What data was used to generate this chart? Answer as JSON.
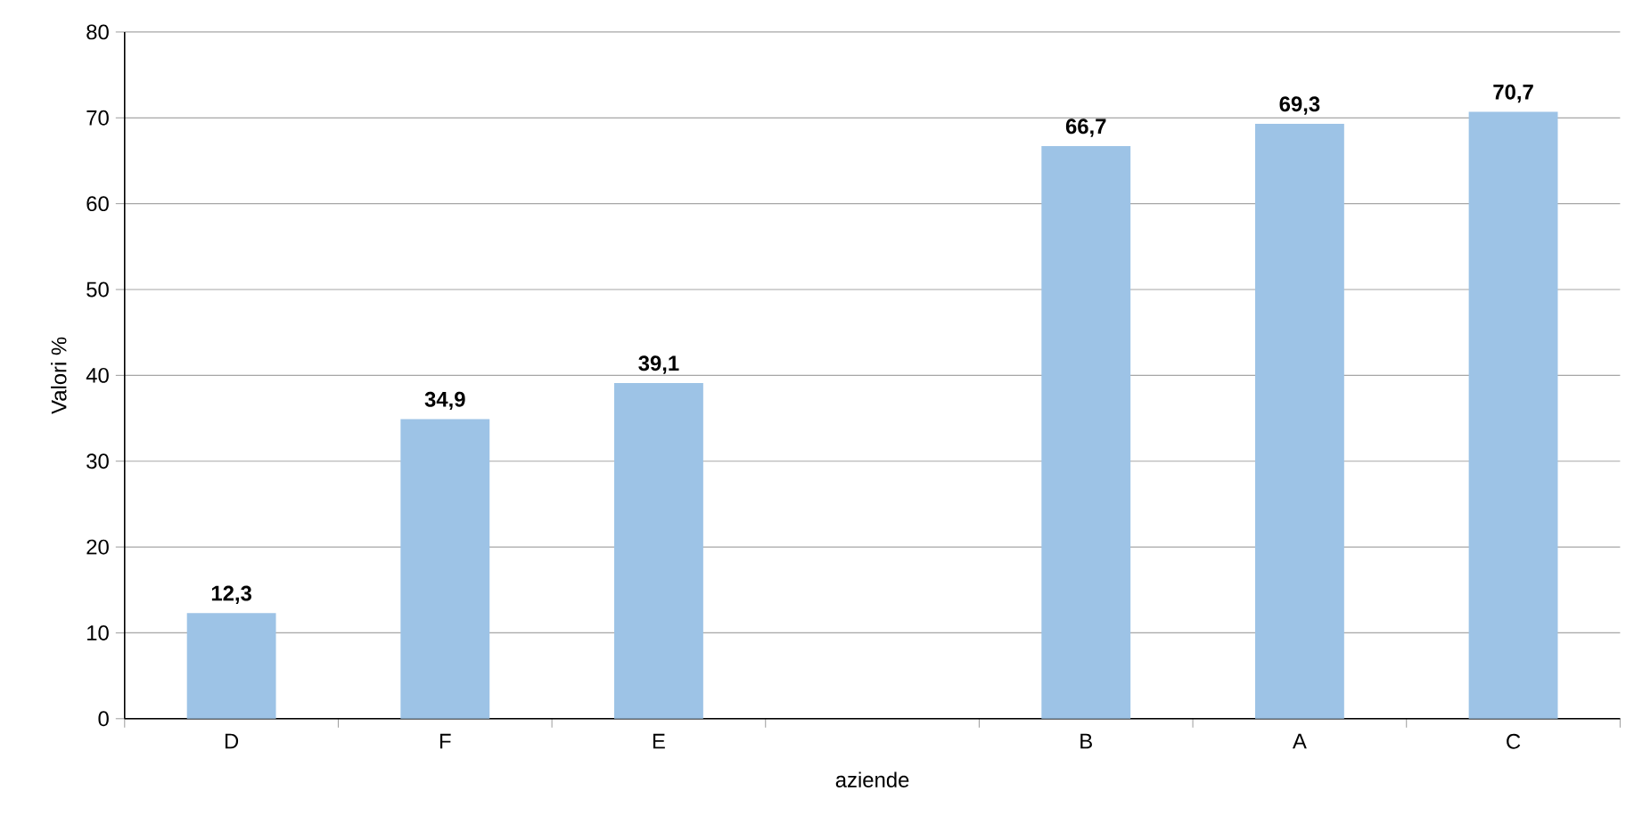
{
  "chart_data": {
    "type": "bar",
    "xlabel": "aziende",
    "ylabel": "Valori %",
    "categories": [
      "D",
      "F",
      "E",
      null,
      "B",
      "A",
      "C"
    ],
    "values": [
      12.3,
      34.9,
      39.1,
      null,
      66.7,
      69.3,
      70.7
    ],
    "value_labels": [
      "12,3",
      "34,9",
      "39,1",
      null,
      "66,7",
      "69,3",
      "70,7"
    ],
    "color": "#9dc3e6",
    "ylim": [
      0,
      80
    ],
    "yticks": [
      0,
      10,
      20,
      30,
      40,
      50,
      60,
      70,
      80
    ],
    "grid": "y"
  }
}
